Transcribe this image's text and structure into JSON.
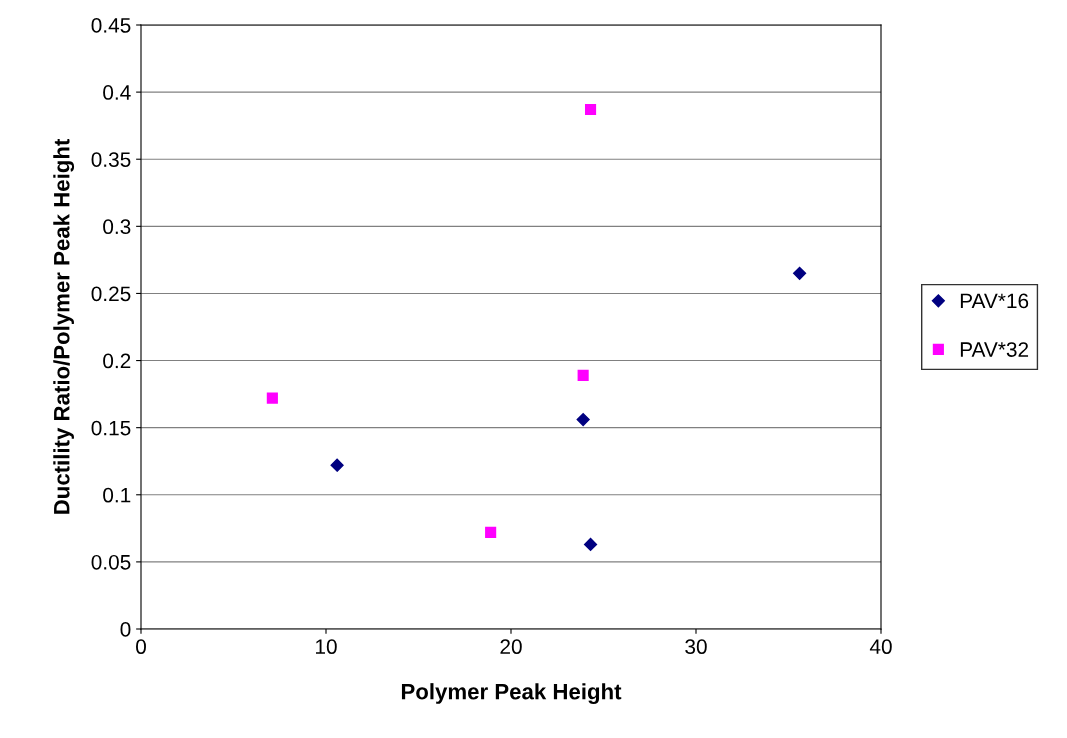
{
  "chart_data": {
    "type": "scatter",
    "xlabel": "Polymer Peak Height",
    "ylabel": "Ductility Ratio/Polymer Peak Height",
    "series": [
      {
        "name": "PAV*16",
        "color": "#000080",
        "marker": "diamond",
        "x": [
          10.6,
          23.9,
          24.3,
          35.6
        ],
        "values": [
          0.122,
          0.156,
          0.063,
          0.265
        ]
      },
      {
        "name": "PAV*32",
        "color": "#ff00ff",
        "marker": "square",
        "x": [
          7.1,
          18.9,
          23.9,
          24.3
        ],
        "values": [
          0.172,
          0.072,
          0.189,
          0.387
        ]
      }
    ],
    "xlim": [
      0,
      40
    ],
    "xticks": [
      0,
      10,
      20,
      30,
      40
    ],
    "ylim": [
      0,
      0.45
    ],
    "yticks": [
      0,
      0.05,
      0.1,
      0.15,
      0.2,
      0.25,
      0.3,
      0.35,
      0.4,
      0.45
    ],
    "grid": "y",
    "legend": "right"
  }
}
